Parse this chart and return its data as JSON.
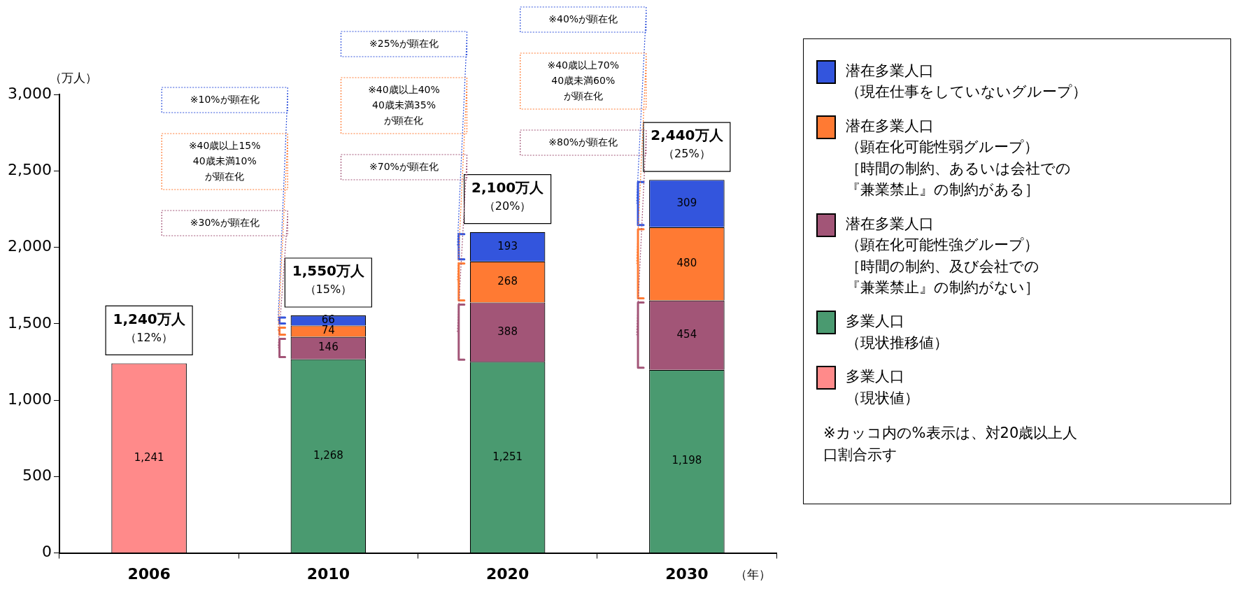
{
  "chart_data": {
    "type": "bar",
    "stacked": true,
    "categories": [
      "2006",
      "2010",
      "2020",
      "2030"
    ],
    "xlabel": "（年）",
    "ylabel": "（万人）",
    "series": [
      {
        "name": "多業人口（現状値）",
        "color": "#ff8a8a",
        "values": [
          1241,
          null,
          null,
          null
        ],
        "value_labels": [
          "1,241",
          null,
          null,
          null
        ]
      },
      {
        "name": "多業人口（現状推移値）",
        "color": "#4a9a70",
        "values": [
          null,
          1268,
          1251,
          1198
        ],
        "value_labels": [
          null,
          "1,268",
          "1,251",
          "1,198"
        ]
      },
      {
        "name": "潜在多業人口（顕在化可能性強グループ）［時間の制約、及び会社での『兼業禁止』の制約がない］",
        "color": "#a25577",
        "values": [
          null,
          146,
          388,
          454
        ],
        "value_labels": [
          null,
          "146",
          "388",
          "454"
        ]
      },
      {
        "name": "潜在多業人口（顕在化可能性弱グループ）［時間の制約、あるいは会社での『兼業禁止』の制約がある］",
        "color": "#ff7a33",
        "values": [
          null,
          74,
          268,
          480
        ],
        "value_labels": [
          null,
          "74",
          "268",
          "480"
        ]
      },
      {
        "name": "潜在多業人口（現在仕事をしていないグループ）",
        "color": "#3355dd",
        "values": [
          null,
          66,
          193,
          309
        ],
        "value_labels": [
          null,
          "66",
          "193",
          "309"
        ]
      }
    ],
    "ylim": [
      0,
      3000
    ],
    "yticks": [
      0,
      500,
      {
        "value": 1000,
        "label": "1,000"
      },
      {
        "value": 1500,
        "label": "1,500"
      },
      {
        "value": 2000,
        "label": "2,000"
      },
      {
        "value": 2500,
        "label": "2,500"
      },
      {
        "value": 3000,
        "label": "3,000"
      }
    ],
    "totals": [
      "1,240万人（12%）",
      "1,550万人（15%）",
      "2,100万人（20%）",
      "2,440万人（25%）"
    ],
    "legend": "right",
    "annotations": [
      "※10%が顕在化",
      "※40歳以上15%40歳未満10%が顕在化",
      "※30%が顕在化",
      "※25%が顕在化",
      "※40歳以上40%40歳未満35%が顕在化",
      "※70%が顕在化",
      "※40%が顕在化",
      "※40歳以上70%40歳未満60%が顕在化",
      "※80%が顕在化",
      "※カッコ内の%表示は、対20歳以上人口割合示す"
    ]
  }
}
